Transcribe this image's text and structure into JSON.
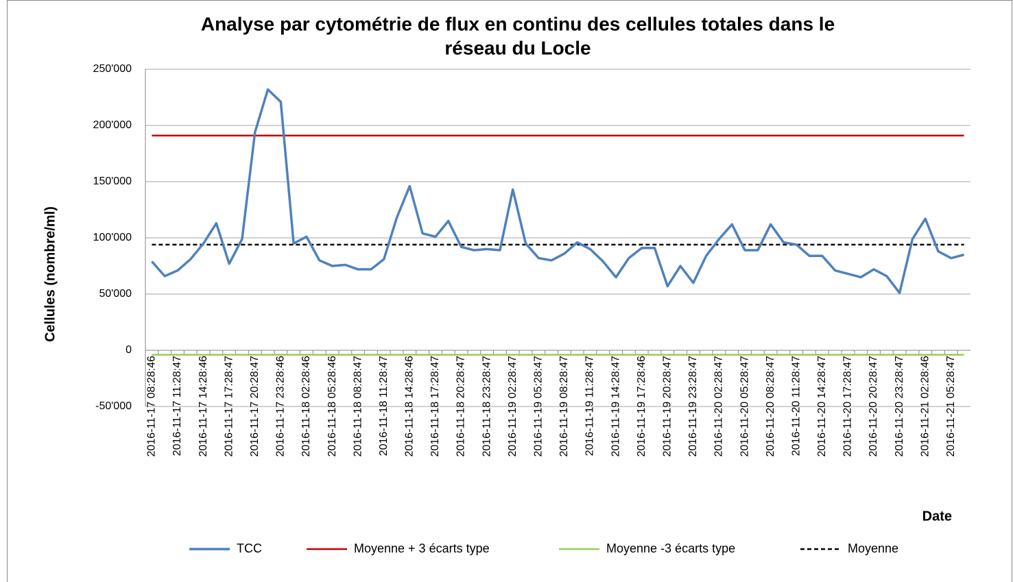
{
  "chart_data": {
    "type": "line",
    "title": [
      "Analyse par cytométrie de flux en continu des cellules totales dans le",
      "réseau du Locle"
    ],
    "y_label": "Cellules (nombre/ml)",
    "x_label": "Date",
    "categories": [
      "2016-11-17 08:28:46",
      null,
      "2016-11-17 11:28:47",
      null,
      "2016-11-17 14:28:46",
      null,
      "2016-11-17 17:28:47",
      null,
      "2016-11-17 20:28:47",
      null,
      "2016-11-17 23:28:46",
      null,
      "2016-11-18 02:28:46",
      null,
      "2016-11-18 05:28:46",
      null,
      "2016-11-18 08:28:47",
      null,
      "2016-11-18 11:28:47",
      null,
      "2016-11-18 14:28:46",
      null,
      "2016-11-18 17:28:47",
      null,
      "2016-11-18 20:28:47",
      null,
      "2016-11-18 23:28:47",
      null,
      "2016-11-19 02:28:47",
      null,
      "2016-11-19 05:28:47",
      null,
      "2016-11-19 08:28:47",
      null,
      "2016-11-19 11:28:47",
      null,
      "2016-11-19 14:28:47",
      null,
      "2016-11-19 17:28:46",
      null,
      "2016-11-19 20:28:47",
      null,
      "2016-11-19 23:28:47",
      null,
      "2016-11-20 02:28:47",
      null,
      "2016-11-20 05:28:47",
      null,
      "2016-11-20 08:28:47",
      null,
      "2016-11-20 11:28:47",
      null,
      "2016-11-20 14:28:47",
      null,
      "2016-11-20 17:28:47",
      null,
      "2016-11-20 20:28:47",
      null,
      "2016-11-20 23:28:47",
      null,
      "2016-11-21 02:28:46",
      null,
      "2016-11-21 05:28:47",
      null
    ],
    "series": [
      {
        "name": "TCC",
        "color": "#4f81bd",
        "dash": false,
        "values": [
          79000,
          66000,
          71000,
          81000,
          95000,
          113000,
          77000,
          99000,
          194000,
          232000,
          221000,
          95000,
          101000,
          80000,
          75000,
          76000,
          72000,
          72000,
          81000,
          118000,
          146000,
          104000,
          101000,
          115000,
          92000,
          89000,
          90000,
          89000,
          143000,
          95000,
          82000,
          80000,
          86000,
          96000,
          90000,
          79000,
          65000,
          82000,
          91000,
          91000,
          57000,
          75000,
          60000,
          84000,
          99000,
          112000,
          89000,
          89000,
          112000,
          96000,
          94000,
          84000,
          84000,
          71000,
          68000,
          65000,
          72000,
          66000,
          51000,
          99000,
          117000,
          88000,
          82000,
          85000
        ]
      },
      {
        "name": "Moyenne + 3 écarts type",
        "color": "#c00000",
        "dash": false,
        "values": [
          191000,
          191000,
          191000,
          191000,
          191000,
          191000,
          191000,
          191000,
          191000,
          191000,
          191000,
          191000,
          191000,
          191000,
          191000,
          191000,
          191000,
          191000,
          191000,
          191000,
          191000,
          191000,
          191000,
          191000,
          191000,
          191000,
          191000,
          191000,
          191000,
          191000,
          191000,
          191000,
          191000,
          191000,
          191000,
          191000,
          191000,
          191000,
          191000,
          191000,
          191000,
          191000,
          191000,
          191000,
          191000,
          191000,
          191000,
          191000,
          191000,
          191000,
          191000,
          191000,
          191000,
          191000,
          191000,
          191000,
          191000,
          191000,
          191000,
          191000,
          191000,
          191000,
          191000,
          191000
        ]
      },
      {
        "name": "Moyenne -3 écarts type",
        "color": "#92d050",
        "dash": false,
        "values": [
          -4000,
          -4000,
          -4000,
          -4000,
          -4000,
          -4000,
          -4000,
          -4000,
          -4000,
          -4000,
          -4000,
          -4000,
          -4000,
          -4000,
          -4000,
          -4000,
          -4000,
          -4000,
          -4000,
          -4000,
          -4000,
          -4000,
          -4000,
          -4000,
          -4000,
          -4000,
          -4000,
          -4000,
          -4000,
          -4000,
          -4000,
          -4000,
          -4000,
          -4000,
          -4000,
          -4000,
          -4000,
          -4000,
          -4000,
          -4000,
          -4000,
          -4000,
          -4000,
          -4000,
          -4000,
          -4000,
          -4000,
          -4000,
          -4000,
          -4000,
          -4000,
          -4000,
          -4000,
          -4000,
          -4000,
          -4000,
          -4000,
          -4000,
          -4000,
          -4000,
          -4000,
          -4000,
          -4000,
          -4000
        ]
      },
      {
        "name": "Moyenne",
        "color": "#000000",
        "dash": true,
        "values": [
          94000,
          94000,
          94000,
          94000,
          94000,
          94000,
          94000,
          94000,
          94000,
          94000,
          94000,
          94000,
          94000,
          94000,
          94000,
          94000,
          94000,
          94000,
          94000,
          94000,
          94000,
          94000,
          94000,
          94000,
          94000,
          94000,
          94000,
          94000,
          94000,
          94000,
          94000,
          94000,
          94000,
          94000,
          94000,
          94000,
          94000,
          94000,
          94000,
          94000,
          94000,
          94000,
          94000,
          94000,
          94000,
          94000,
          94000,
          94000,
          94000,
          94000,
          94000,
          94000,
          94000,
          94000,
          94000,
          94000,
          94000,
          94000,
          94000,
          94000,
          94000,
          94000,
          94000,
          94000
        ]
      }
    ],
    "ylim": [
      -50000,
      250000
    ],
    "yticks": [
      {
        "value": -50000,
        "label": "-50'000"
      },
      0,
      {
        "value": 50000,
        "label": "50'000"
      },
      {
        "value": 100000,
        "label": "100'000"
      },
      {
        "value": 150000,
        "label": "150'000"
      },
      {
        "value": 200000,
        "label": "200'000"
      },
      {
        "value": 250000,
        "label": "250'000"
      }
    ],
    "grid": true,
    "legend": "bottom"
  }
}
